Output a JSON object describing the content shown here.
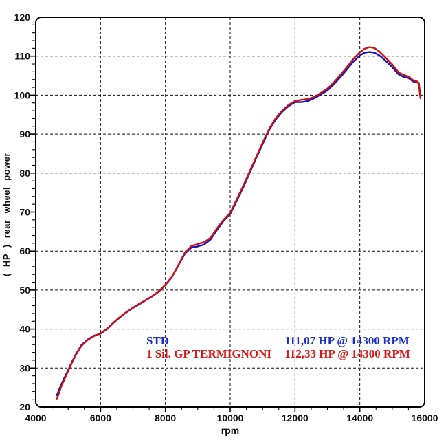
{
  "chart_data": {
    "type": "line",
    "title": "",
    "xlabel": "rpm",
    "ylabel": "( HP )  rear wheel power",
    "xlim": [
      4000,
      16000
    ],
    "ylim": [
      20,
      120
    ],
    "x_major_ticks": [
      4000,
      6000,
      8000,
      10000,
      12000,
      14000,
      16000
    ],
    "x_minor_step": 500,
    "y_major_ticks": [
      20,
      30,
      40,
      50,
      60,
      70,
      80,
      90,
      100,
      110,
      120
    ],
    "y_minor_step": 2,
    "grid": {
      "style": "dashed",
      "color": "#111111",
      "vertical_at": [
        6000,
        8000,
        10000,
        12000,
        14000
      ],
      "horizontal_at": [
        30,
        40,
        50,
        60,
        70,
        80,
        90,
        100,
        110
      ]
    },
    "frame_color": "#000000",
    "legend_position": "inside-bottom-center",
    "x": [
      4650,
      4800,
      5000,
      5200,
      5400,
      5600,
      5800,
      6000,
      6200,
      6400,
      6600,
      6800,
      7000,
      7200,
      7400,
      7600,
      7800,
      8000,
      8200,
      8400,
      8600,
      8800,
      9000,
      9200,
      9400,
      9600,
      9800,
      10000,
      10200,
      10400,
      10600,
      10800,
      11000,
      11200,
      11400,
      11600,
      11800,
      12000,
      12200,
      12400,
      12600,
      12800,
      13000,
      13200,
      13400,
      13600,
      13800,
      14000,
      14150,
      14300,
      14450,
      14600,
      14800,
      15000,
      15200,
      15350,
      15500,
      15650,
      15750,
      15820,
      15850,
      15870
    ],
    "series": [
      {
        "name": "STD",
        "color": "#1515bb",
        "peak": "111,07 HP @ 14300 RPM",
        "peak_hp": 111.07,
        "peak_rpm": 14300,
        "values": [
          23.0,
          26.0,
          29.5,
          33.0,
          35.8,
          37.3,
          38.3,
          38.8,
          40.0,
          41.6,
          43.0,
          44.3,
          45.4,
          46.4,
          47.4,
          48.4,
          49.6,
          51.3,
          53.3,
          56.3,
          59.3,
          60.9,
          61.2,
          61.7,
          63.0,
          65.5,
          67.8,
          69.5,
          72.8,
          76.3,
          80.0,
          83.8,
          87.4,
          91.0,
          93.7,
          95.7,
          97.2,
          98.2,
          98.2,
          98.5,
          99.2,
          100.2,
          101.2,
          102.8,
          104.6,
          106.6,
          108.6,
          110.2,
          110.9,
          111.07,
          110.9,
          110.2,
          108.8,
          107.2,
          105.3,
          104.7,
          104.4,
          103.5,
          103.4,
          103.0,
          101.2,
          100.3
        ]
      },
      {
        "name": "1 Sil. GP TERMIGNONI",
        "color": "#cc1111",
        "peak": "112,33 HP @ 14300 RPM",
        "peak_hp": 112.33,
        "peak_rpm": 14300,
        "values": [
          22.0,
          25.5,
          29.2,
          32.8,
          35.6,
          37.2,
          38.2,
          38.9,
          40.1,
          41.7,
          43.1,
          44.4,
          45.5,
          46.5,
          47.5,
          48.5,
          49.7,
          51.4,
          53.4,
          56.4,
          59.6,
          61.3,
          61.8,
          62.3,
          63.5,
          65.9,
          68.1,
          69.8,
          73.2,
          76.7,
          80.4,
          84.1,
          87.8,
          91.3,
          94.0,
          96.0,
          97.5,
          98.5,
          98.8,
          99.0,
          99.6,
          100.6,
          101.7,
          103.3,
          105.2,
          107.2,
          109.3,
          111.0,
          111.9,
          112.33,
          112.1,
          111.2,
          109.6,
          107.9,
          105.8,
          105.2,
          104.8,
          103.8,
          103.6,
          103.2,
          100.5,
          99.2
        ]
      }
    ]
  },
  "legend": {
    "rows": [
      {
        "label": "STD",
        "value": "111,07 HP @ 14300 RPM",
        "color": "#1a2acc"
      },
      {
        "label": "1 Sil. GP TERMIGNONI",
        "value": "112,33 HP @ 14300 RPM",
        "color": "#dd1414"
      }
    ]
  }
}
